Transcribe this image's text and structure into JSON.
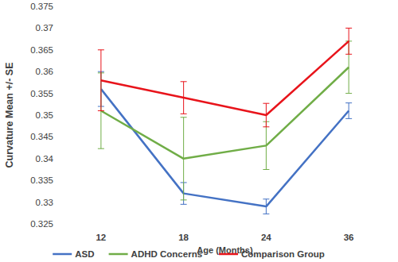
{
  "chart_data": {
    "type": "line",
    "x_label": "Age (Months)",
    "y_label": "Curvature Mean +/- SE",
    "categories": [
      "12",
      "18",
      "24",
      "36"
    ],
    "ylim": [
      0.325,
      0.375
    ],
    "yticks": [
      0.325,
      0.33,
      0.335,
      0.34,
      0.345,
      0.35,
      0.355,
      0.36,
      0.365,
      0.37,
      0.375
    ],
    "grid": false,
    "legend": "bottom",
    "series": [
      {
        "name": "ASD",
        "color": "#4472c4",
        "values": [
          0.356,
          0.332,
          0.329,
          0.351
        ],
        "errors": [
          0.004,
          0.0025,
          0.0017,
          0.0018
        ]
      },
      {
        "name": "ADHD Concerns",
        "color": "#70ad47",
        "values": [
          0.351,
          0.34,
          0.343,
          0.361
        ],
        "errors": [
          0.0087,
          0.0095,
          0.0055,
          0.006
        ]
      },
      {
        "name": "Comparison Group",
        "color": "#e8141b",
        "values": [
          0.358,
          0.354,
          0.35,
          0.367
        ],
        "errors": [
          0.007,
          0.0037,
          0.0027,
          0.003
        ]
      }
    ]
  }
}
